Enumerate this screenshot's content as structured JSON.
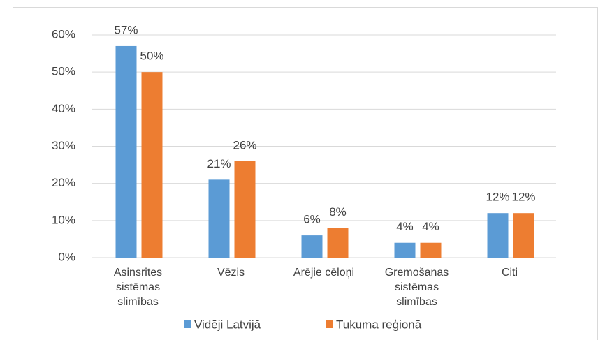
{
  "chart_data": {
    "type": "bar",
    "categories": [
      "Asinsrites sistēmas slimības",
      "Vēzis",
      "Ārējie cēloņi",
      "Gremošanas sistēmas slimības",
      "Citi"
    ],
    "series": [
      {
        "name": "Vidēji Latvijā",
        "color": "#5b9bd5",
        "values": [
          57,
          21,
          6,
          4,
          12
        ],
        "value_labels": [
          "57%",
          "21%",
          "6%",
          "4%",
          "12%"
        ]
      },
      {
        "name": "Tukuma reģionā",
        "color": "#ed7d31",
        "values": [
          50,
          26,
          8,
          4,
          12
        ],
        "value_labels": [
          "50%",
          "26%",
          "8%",
          "4%",
          "12%"
        ]
      }
    ],
    "ylim": [
      0,
      60
    ],
    "yticks": [
      {
        "value": 0,
        "label": "0%"
      },
      {
        "value": 10,
        "label": "10%"
      },
      {
        "value": 20,
        "label": "20%"
      },
      {
        "value": 30,
        "label": "30%"
      },
      {
        "value": 40,
        "label": "40%"
      },
      {
        "value": 50,
        "label": "50%"
      },
      {
        "value": 60,
        "label": "60%"
      }
    ],
    "grid": true,
    "legend": "bottom"
  }
}
